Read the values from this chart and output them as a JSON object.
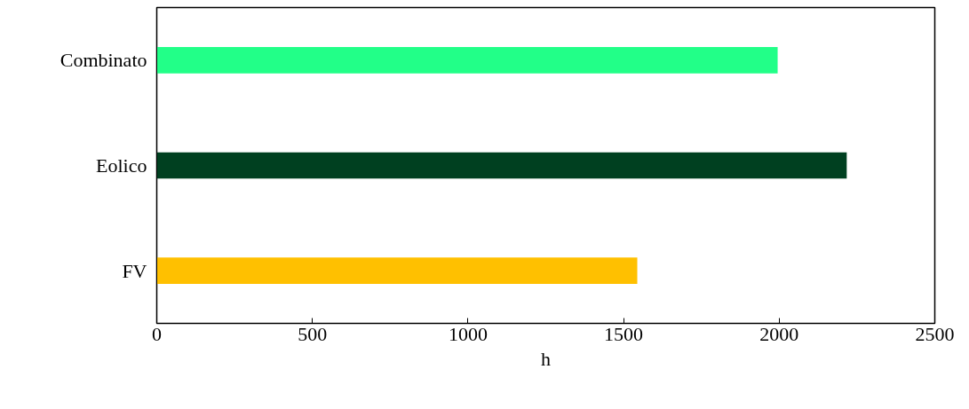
{
  "chart_data": {
    "type": "bar",
    "orientation": "horizontal",
    "xlabel": "h",
    "categories": [
      "Combinato",
      "Eolico",
      "FV"
    ],
    "values": [
      1995,
      2217,
      1544
    ],
    "colors": [
      "#22ff88",
      "#004020",
      "#ffc000"
    ],
    "xlim": [
      0,
      2500
    ],
    "xticks": [
      0,
      500,
      1000,
      1500,
      2000,
      2500
    ],
    "grid": false
  }
}
